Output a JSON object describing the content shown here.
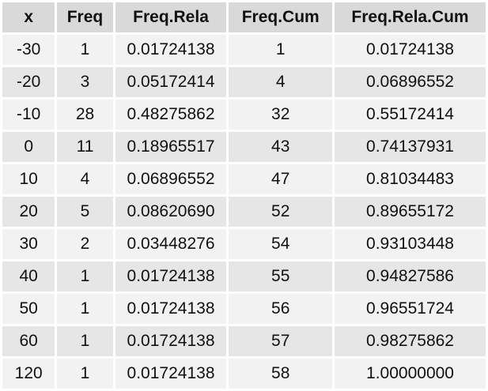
{
  "chart_data": {
    "type": "table",
    "columns": [
      "x",
      "Freq",
      "Freq.Rela",
      "Freq.Cum",
      "Freq.Rela.Cum"
    ],
    "rows": [
      [
        "-30",
        "1",
        "0.01724138",
        "1",
        "0.01724138"
      ],
      [
        "-20",
        "3",
        "0.05172414",
        "4",
        "0.06896552"
      ],
      [
        "-10",
        "28",
        "0.48275862",
        "32",
        "0.55172414"
      ],
      [
        "0",
        "11",
        "0.18965517",
        "43",
        "0.74137931"
      ],
      [
        "10",
        "4",
        "0.06896552",
        "47",
        "0.81034483"
      ],
      [
        "20",
        "5",
        "0.08620690",
        "52",
        "0.89655172"
      ],
      [
        "30",
        "2",
        "0.03448276",
        "54",
        "0.93103448"
      ],
      [
        "40",
        "1",
        "0.01724138",
        "55",
        "0.94827586"
      ],
      [
        "50",
        "1",
        "0.01724138",
        "56",
        "0.96551724"
      ],
      [
        "60",
        "1",
        "0.01724138",
        "57",
        "0.98275862"
      ],
      [
        "120",
        "1",
        "0.01724138",
        "58",
        "1.00000000"
      ]
    ]
  },
  "colors": {
    "header_bg": "#d9d9d9",
    "row_light": "#f2f2f2",
    "row_dark": "#e6e6e6",
    "text": "#111111"
  }
}
